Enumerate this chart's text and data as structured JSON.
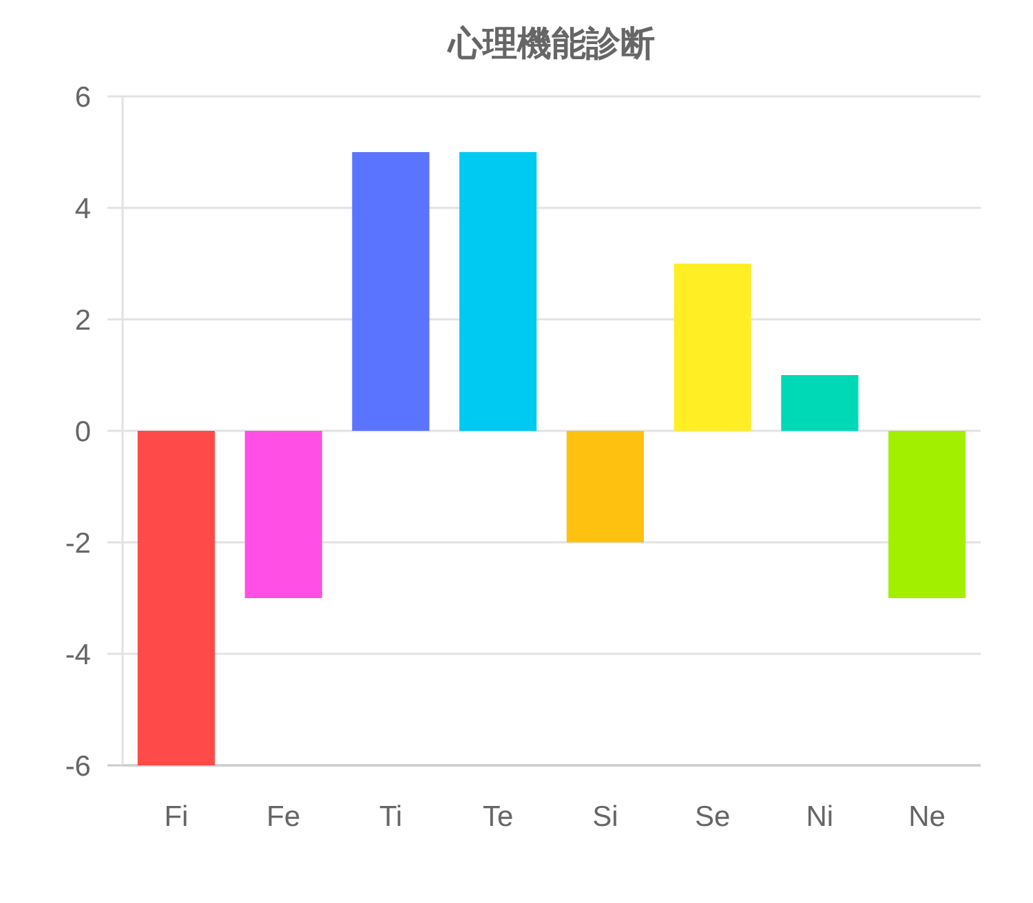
{
  "chart_data": {
    "type": "bar",
    "title": "心理機能診断",
    "categories": [
      "Fi",
      "Fe",
      "Ti",
      "Te",
      "Si",
      "Se",
      "Ni",
      "Ne"
    ],
    "values": [
      -6,
      -3,
      5,
      5,
      -2,
      3,
      1,
      -3
    ],
    "colors": [
      "#ff4a4a",
      "#ff4fe5",
      "#5b74ff",
      "#00c9f2",
      "#ffc10f",
      "#ffee24",
      "#00d9b5",
      "#a3ef00"
    ],
    "ylim": [
      -6,
      6
    ],
    "yticks": [
      -6,
      -4,
      -2,
      0,
      2,
      4,
      6
    ],
    "grid": "y"
  }
}
